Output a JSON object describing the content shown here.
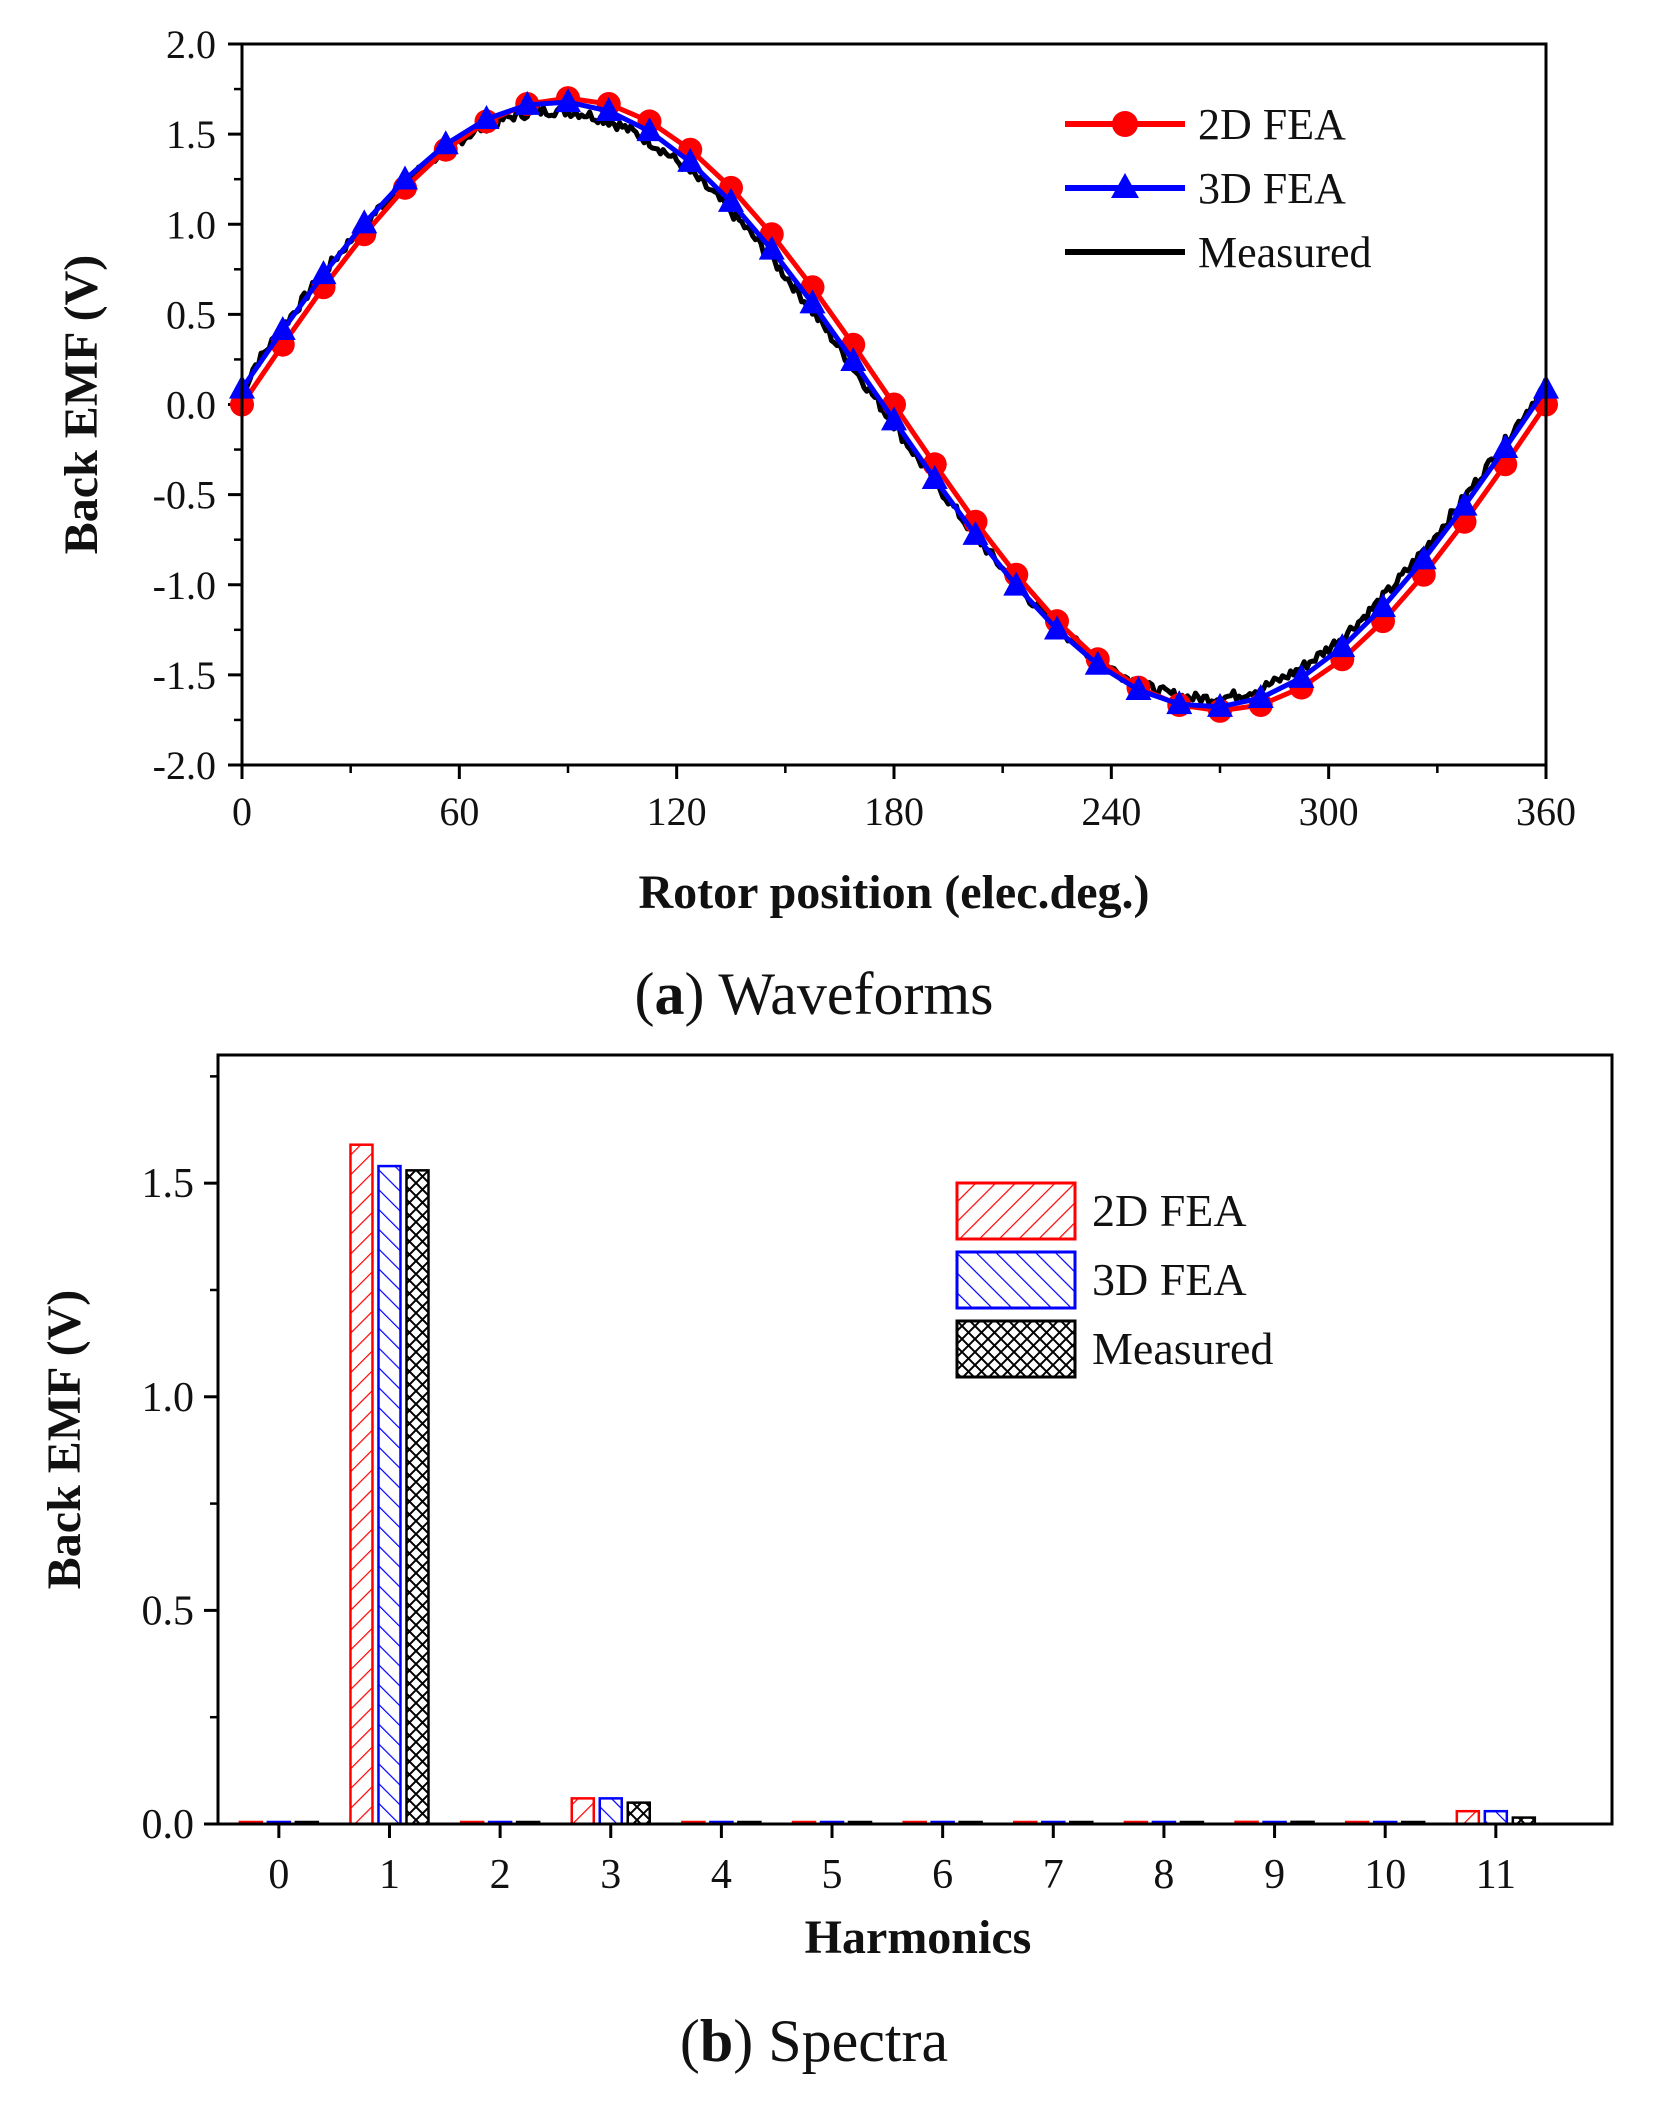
{
  "chart_data": [
    {
      "type": "line",
      "title": "",
      "caption": {
        "label": "a",
        "text": "Waveforms"
      },
      "xlabel": "Rotor position (elec.deg.)",
      "ylabel": "Back EMF (V)",
      "xlim": [
        0,
        360
      ],
      "ylim": [
        -2.0,
        2.0
      ],
      "xticks": [
        0,
        60,
        120,
        180,
        240,
        300,
        360
      ],
      "yticks": [
        2.0,
        1.5,
        1.0,
        0.5,
        0.0,
        -0.5,
        -1.0,
        -1.5,
        -2.0
      ],
      "ytick_labels": [
        "2.0",
        "1.5",
        "1.0",
        "0.5",
        "0.0",
        "-0.5",
        "-1.0",
        "-1.5",
        "-2.0"
      ],
      "legend_position": "top-right",
      "series": [
        {
          "name": "2D FEA",
          "color": "#ff0000",
          "marker": "circle",
          "amplitude": 1.7,
          "phase_offset_deg": 0,
          "x": [
            0,
            11.25,
            22.5,
            33.75,
            45,
            56.25,
            67.5,
            78.75,
            90,
            101.25,
            112.5,
            123.75,
            135,
            146.25,
            157.5,
            168.75,
            180,
            191.25,
            202.5,
            213.75,
            225,
            236.25,
            247.5,
            258.75,
            270,
            281.25,
            292.5,
            303.75,
            315,
            326.25,
            337.5,
            348.75,
            360
          ]
        },
        {
          "name": "3D FEA",
          "color": "#0000ff",
          "marker": "triangle",
          "amplitude": 1.68,
          "phase_offset_deg": -3,
          "x": [
            0,
            11.25,
            22.5,
            33.75,
            45,
            56.25,
            67.5,
            78.75,
            90,
            101.25,
            112.5,
            123.75,
            135,
            146.25,
            157.5,
            168.75,
            180,
            191.25,
            202.5,
            213.75,
            225,
            236.25,
            247.5,
            258.75,
            270,
            281.25,
            292.5,
            303.75,
            315,
            326.25,
            337.5,
            348.75,
            360
          ]
        },
        {
          "name": "Measured",
          "color": "#000000",
          "marker": "none",
          "amplitude": 1.63,
          "phase_offset_deg": -4,
          "noise": 0.03
        }
      ]
    },
    {
      "type": "bar",
      "title": "",
      "caption": {
        "label": "b",
        "text": "Spectra"
      },
      "xlabel": "Harmonics",
      "ylabel": "Back EMF (V)",
      "categories": [
        "0",
        "1",
        "2",
        "3",
        "4",
        "5",
        "6",
        "7",
        "8",
        "9",
        "10",
        "11"
      ],
      "ylim": [
        0,
        1.8
      ],
      "yticks": [
        0.0,
        0.5,
        1.0,
        1.5
      ],
      "ytick_labels": [
        "0.0",
        "0.5",
        "1.0",
        "1.5"
      ],
      "legend_position": "top-right",
      "series": [
        {
          "name": "2D FEA",
          "color": "#ff0000",
          "hatch": "forward-diagonal",
          "values": [
            0.0,
            1.59,
            0.0,
            0.06,
            0.0,
            0.0,
            0.0,
            0.0,
            0.0,
            0.005,
            0.0,
            0.03
          ]
        },
        {
          "name": "3D FEA",
          "color": "#0000ff",
          "hatch": "backward-diagonal",
          "values": [
            0.0,
            1.54,
            0.0,
            0.06,
            0.0,
            0.0,
            0.0,
            0.0,
            0.0,
            0.003,
            0.0,
            0.03
          ]
        },
        {
          "name": "Measured",
          "color": "#000000",
          "hatch": "crosshatch",
          "values": [
            0.0,
            1.53,
            0.003,
            0.05,
            0.003,
            0.0,
            0.002,
            0.0,
            0.0,
            0.005,
            0.0,
            0.015
          ]
        }
      ]
    }
  ]
}
